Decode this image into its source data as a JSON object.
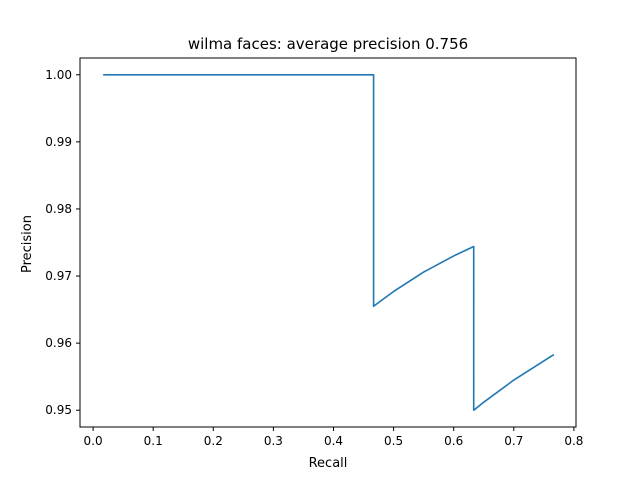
{
  "chart_data": {
    "type": "line",
    "title": "wilma faces: average precision 0.756",
    "xlabel": "Recall",
    "ylabel": "Precision",
    "xlim": [
      -0.0218,
      0.8035
    ],
    "ylim": [
      0.9475,
      1.0025
    ],
    "xticks": [
      0.0,
      0.1,
      0.2,
      0.3,
      0.4,
      0.5,
      0.6,
      0.7,
      0.8
    ],
    "xtick_labels": [
      "0.0",
      "0.1",
      "0.2",
      "0.3",
      "0.4",
      "0.5",
      "0.6",
      "0.7",
      "0.8"
    ],
    "yticks": [
      0.95,
      0.96,
      0.97,
      0.98,
      0.99,
      1.0
    ],
    "ytick_labels": [
      "0.95",
      "0.96",
      "0.97",
      "0.98",
      "0.99",
      "1.00"
    ],
    "grid": false,
    "line_color": "#1f77b4",
    "series": [
      {
        "x": [
          0.0167,
          0.4667,
          0.4667,
          0.5,
          0.55,
          0.6,
          0.6333,
          0.6333,
          0.65,
          0.7,
          0.7667
        ],
        "y": [
          1.0,
          1.0,
          0.9655,
          0.9677,
          0.9706,
          0.973,
          0.9744,
          0.95,
          0.9512,
          0.9545,
          0.9583
        ]
      }
    ]
  }
}
